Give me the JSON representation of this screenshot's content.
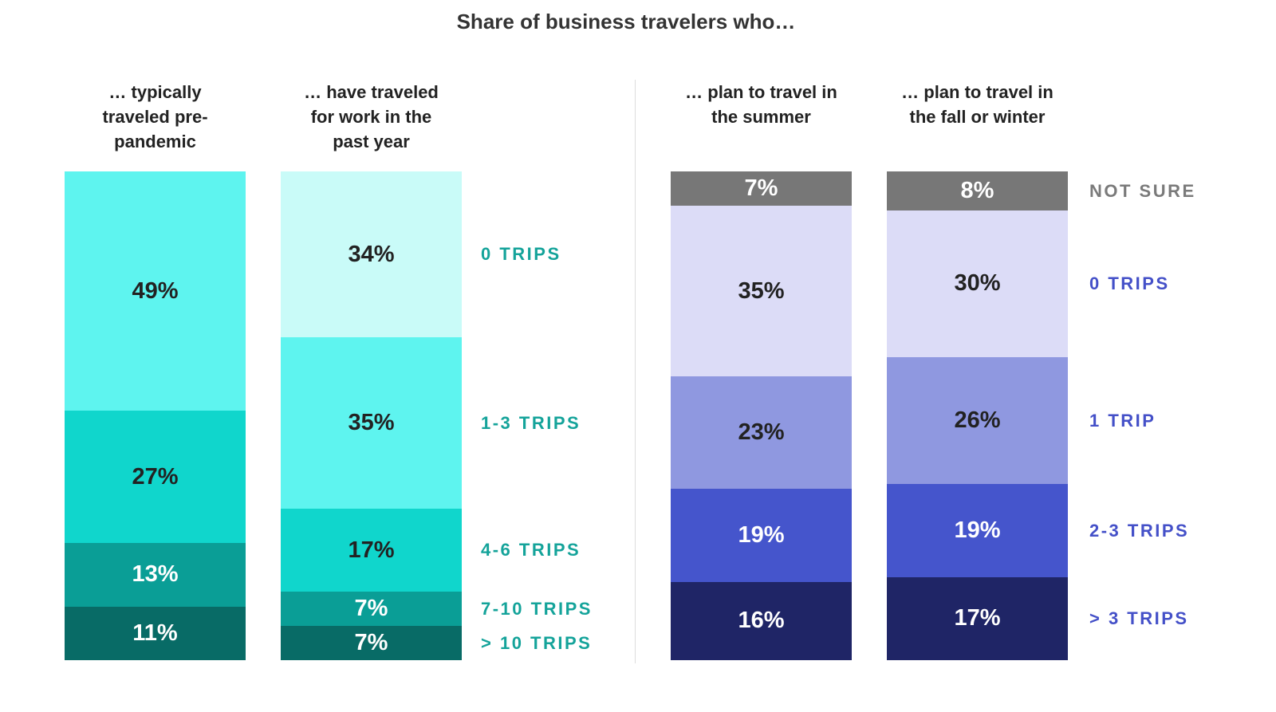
{
  "title": "Share of business travelers who…",
  "chart_data": [
    {
      "type": "stacked-bar",
      "categories": [
        "… typically traveled pre-pandemic",
        "… have traveled for work in the past year"
      ],
      "ylim": [
        0,
        100
      ],
      "series": [
        {
          "name": "> 10 TRIPS",
          "color": "#086b66",
          "label_color": "#14a39a",
          "values": [
            11,
            7
          ],
          "value_labels": [
            "11%",
            "7%"
          ]
        },
        {
          "name": "7-10 TRIPS",
          "color": "#0a9e96",
          "label_color": "#14a39a",
          "values": [
            13,
            7
          ],
          "value_labels": [
            "13%",
            "7%"
          ]
        },
        {
          "name": "4-6 TRIPS",
          "color": "#10d6cc",
          "label_color": "#14a39a",
          "values": [
            27,
            17
          ],
          "value_labels": [
            "27%",
            "17%"
          ]
        },
        {
          "name": "1-3 TRIPS",
          "color": "#5ef4ef",
          "label_color": "#14a39a",
          "values": [
            49,
            35
          ],
          "value_labels": [
            "49%",
            "35%"
          ]
        },
        {
          "name": "0 TRIPS",
          "color": "#c9fbf8",
          "label_color": "#14a39a",
          "values": [
            null,
            34
          ],
          "value_labels": [
            null,
            "34%"
          ]
        }
      ]
    },
    {
      "type": "stacked-bar",
      "categories": [
        "… plan to travel in the summer",
        "… plan to travel in the fall or winter"
      ],
      "ylim": [
        0,
        100
      ],
      "series": [
        {
          "name": "> 3 TRIPS",
          "color": "#1f2566",
          "label_color": "#4450c8",
          "values": [
            16,
            17
          ],
          "value_labels": [
            "16%",
            "17%"
          ]
        },
        {
          "name": "2-3 TRIPS",
          "color": "#4555cc",
          "label_color": "#4450c8",
          "values": [
            19,
            19
          ],
          "value_labels": [
            "19%",
            "19%"
          ]
        },
        {
          "name": "1 TRIP",
          "color": "#8f98e0",
          "label_color": "#4450c8",
          "values": [
            23,
            26
          ],
          "value_labels": [
            "23%",
            "26%"
          ]
        },
        {
          "name": "0 TRIPS",
          "color": "#dcdcf7",
          "label_color": "#4450c8",
          "values": [
            35,
            30
          ],
          "value_labels": [
            "35%",
            "30%"
          ]
        },
        {
          "name": "NOT SURE",
          "color": "#777777",
          "label_color": "#7a7a7a",
          "values": [
            7,
            8
          ],
          "value_labels": [
            "7%",
            "8%"
          ]
        }
      ]
    }
  ]
}
